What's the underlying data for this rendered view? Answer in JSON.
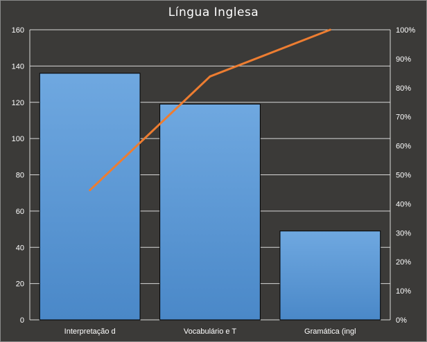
{
  "chart_data": {
    "type": "bar",
    "title": "Língua Inglesa",
    "categories": [
      "Interpretação d",
      "Vocabulário e T",
      "Gramática (ingl"
    ],
    "series": [
      {
        "type": "bar",
        "values": [
          136,
          119,
          49
        ]
      },
      {
        "type": "line",
        "axis": "right",
        "values": [
          44.7,
          83.9,
          100
        ]
      }
    ],
    "y_ticks": [
      "0",
      "20",
      "40",
      "60",
      "80",
      "100",
      "120",
      "140",
      "160"
    ],
    "y2_ticks": [
      "0%",
      "10%",
      "20%",
      "30%",
      "40%",
      "50%",
      "60%",
      "70%",
      "80%",
      "90%",
      "100%"
    ],
    "ylim": [
      0,
      160
    ],
    "y2lim": [
      0,
      100
    ],
    "grid": true,
    "colors": {
      "bar": "#5b9bd5",
      "bar_top": "#6fa8e0",
      "bar_bottom": "#4a88c8",
      "line": "#ed7d31",
      "background": "#3b3a38",
      "grid": "#d9d9d9"
    }
  }
}
